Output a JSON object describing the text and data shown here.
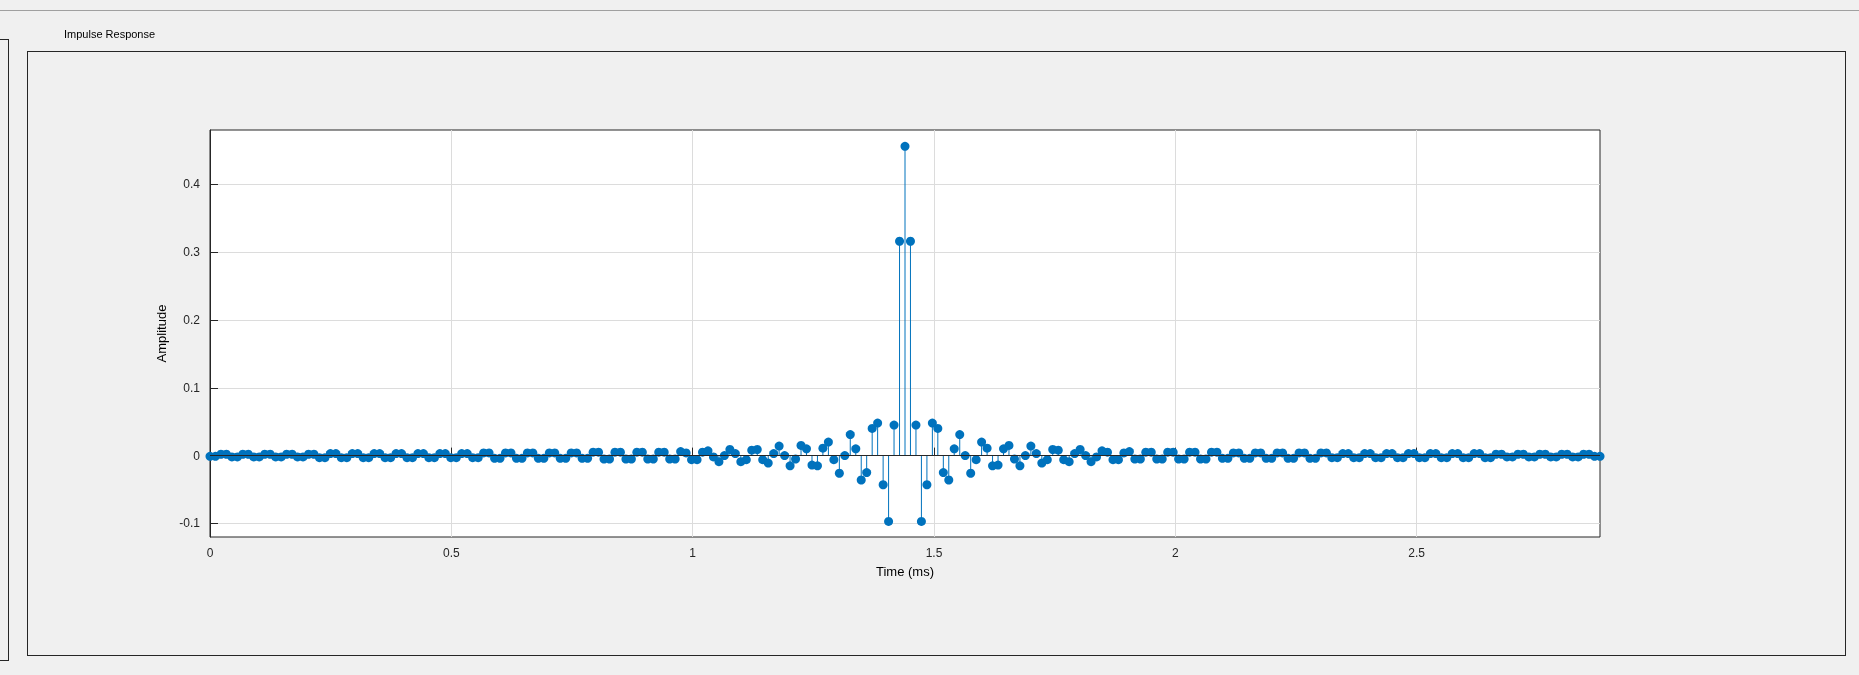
{
  "chart_data": {
    "type": "lollipop",
    "title": "Impulse Response",
    "xlabel": "Time (ms)",
    "ylabel": "Amplitude",
    "xlim": [
      0,
      2.8798
    ],
    "xticks": [
      0,
      0.5,
      1,
      1.5,
      2,
      2.5
    ],
    "ylim": [
      -0.12,
      0.48
    ],
    "yticks": [
      -0.1,
      0,
      0.1,
      0.2,
      0.3,
      0.4
    ],
    "grid": true,
    "marker": "circle",
    "ref_lines": [
      {
        "axis": "y",
        "value": 0,
        "color": "#262626"
      }
    ],
    "x": [
      0,
      0.0113,
      0.0227,
      0.034,
      0.0454,
      0.0567,
      0.068,
      0.0794,
      0.0907,
      0.102,
      0.1134,
      0.1247,
      0.1361,
      0.1474,
      0.1587,
      0.1701,
      0.1814,
      0.1927,
      0.2041,
      0.2154,
      0.2268,
      0.2381,
      0.2494,
      0.2608,
      0.2721,
      0.2834,
      0.2948,
      0.3061,
      0.3175,
      0.3288,
      0.3401,
      0.3515,
      0.3628,
      0.3742,
      0.3855,
      0.3968,
      0.4082,
      0.4195,
      0.4308,
      0.4422,
      0.4535,
      0.4649,
      0.4762,
      0.4875,
      0.4989,
      0.5102,
      0.5215,
      0.5329,
      0.5442,
      0.5556,
      0.5669,
      0.5782,
      0.5896,
      0.6009,
      0.6122,
      0.6236,
      0.6349,
      0.6463,
      0.6576,
      0.6689,
      0.6803,
      0.6916,
      0.703,
      0.7143,
      0.7256,
      0.737,
      0.7483,
      0.7596,
      0.771,
      0.7823,
      0.7937,
      0.805,
      0.8163,
      0.8277,
      0.839,
      0.8503,
      0.8617,
      0.873,
      0.8844,
      0.8957,
      0.907,
      0.9184,
      0.9297,
      0.941,
      0.9524,
      0.9637,
      0.9751,
      0.9864,
      0.9977,
      1.0091,
      1.0204,
      1.0317,
      1.0431,
      1.0544,
      1.0658,
      1.0771,
      1.0884,
      1.0998,
      1.1111,
      1.1224,
      1.1338,
      1.1451,
      1.1565,
      1.1678,
      1.1791,
      1.1905,
      1.2018,
      1.2132,
      1.2245,
      1.2358,
      1.2472,
      1.2585,
      1.2698,
      1.2812,
      1.2925,
      1.3039,
      1.3152,
      1.3265,
      1.3379,
      1.3492,
      1.3605,
      1.3719,
      1.3832,
      1.3946,
      1.4059,
      1.4172,
      1.4286,
      1.4399,
      1.4512,
      1.4626,
      1.4739,
      1.4853,
      1.4966,
      1.5079,
      1.5193,
      1.5306,
      1.5419,
      1.5533,
      1.5646,
      1.576,
      1.5873,
      1.5986,
      1.61,
      1.6213,
      1.6327,
      1.644,
      1.6553,
      1.6667,
      1.678,
      1.6893,
      1.7007,
      1.712,
      1.7234,
      1.7347,
      1.746,
      1.7574,
      1.7687,
      1.78,
      1.7914,
      1.8027,
      1.8141,
      1.8254,
      1.8367,
      1.8481,
      1.8594,
      1.8708,
      1.8821,
      1.8934,
      1.9048,
      1.9161,
      1.9275,
      1.9388,
      1.9501,
      1.9615,
      1.9728,
      1.9842,
      1.9955,
      2.0068,
      2.0182,
      2.0295,
      2.0408,
      2.0522,
      2.0635,
      2.0749,
      2.0862,
      2.0975,
      2.1089,
      2.1202,
      2.1315,
      2.1429,
      2.1542,
      2.1656,
      2.1769,
      2.1882,
      2.1996,
      2.2109,
      2.2222,
      2.2336,
      2.2449,
      2.2563,
      2.2676,
      2.2789,
      2.2903,
      2.3016,
      2.313,
      2.3243,
      2.3356,
      2.347,
      2.3583,
      2.3696,
      2.381,
      2.3923,
      2.4037,
      2.415,
      2.4263,
      2.4377,
      2.449,
      2.4603,
      2.4717,
      2.483,
      2.4944,
      2.5057,
      2.517,
      2.5284,
      2.5397,
      2.551,
      2.5624,
      2.5737,
      2.5851,
      2.5964,
      2.6077,
      2.6191,
      2.6304,
      2.6418,
      2.6531,
      2.6644,
      2.6758,
      2.6871,
      2.6984,
      2.7098,
      2.7211,
      2.7325,
      2.7438,
      2.7551,
      2.7665,
      2.7778,
      2.7891,
      2.8005,
      2.8118,
      2.8232,
      2.8345,
      2.8458,
      2.8572,
      2.8685,
      2.8798
    ],
    "series": [
      {
        "color": "#0072bd",
        "values": [
          -0.001,
          -0.001,
          0.002,
          0.002,
          -0.002,
          -0.002,
          0.002,
          0.002,
          -0.002,
          -0.002,
          0.002,
          0.002,
          -0.002,
          -0.002,
          0.002,
          0.002,
          -0.002,
          -0.002,
          0.002,
          0.002,
          -0.003,
          -0.003,
          0.003,
          0.003,
          -0.003,
          -0.003,
          0.003,
          0.003,
          -0.003,
          -0.003,
          0.003,
          0.003,
          -0.003,
          -0.003,
          0.003,
          0.003,
          -0.003,
          -0.003,
          0.003,
          0.003,
          -0.003,
          -0.003,
          0.003,
          0.003,
          -0.003,
          -0.003,
          0.003,
          0.003,
          -0.003,
          -0.003,
          0.004,
          0.004,
          -0.004,
          -0.004,
          0.004,
          0.004,
          -0.004,
          -0.004,
          0.004,
          0.004,
          -0.004,
          -0.004,
          0.004,
          0.004,
          -0.004,
          -0.004,
          0.004,
          0.004,
          -0.004,
          -0.004,
          0.005,
          0.005,
          -0.005,
          -0.005,
          0.005,
          0.005,
          -0.005,
          -0.005,
          0.005,
          0.005,
          -0.005,
          -0.005,
          0.005,
          0.005,
          -0.005,
          -0.005,
          0.006,
          0.004,
          -0.006,
          -0.006,
          0.005,
          0.007,
          -0.002,
          -0.009,
          0,
          0.009,
          0.003,
          -0.009,
          -0.006,
          0.008,
          0.009,
          -0.006,
          -0.011,
          0.003,
          0.014,
          0,
          -0.015,
          -0.005,
          0.015,
          0.01,
          -0.014,
          -0.015,
          0.011,
          0.02,
          -0.006,
          -0.026,
          0,
          0.031,
          0.01,
          -0.036,
          -0.025,
          0.04,
          0.048,
          -0.043,
          -0.097,
          0.045,
          0.316,
          0.456,
          0.316,
          0.045,
          -0.097,
          -0.043,
          0.048,
          0.04,
          -0.025,
          -0.036,
          0.01,
          0.031,
          0,
          -0.026,
          -0.006,
          0.02,
          0.011,
          -0.015,
          -0.014,
          0.01,
          0.015,
          -0.005,
          -0.015,
          0,
          0.014,
          0.003,
          -0.011,
          -0.006,
          0.009,
          0.008,
          -0.006,
          -0.009,
          0.003,
          0.009,
          0,
          -0.009,
          -0.002,
          0.007,
          0.005,
          -0.006,
          -0.006,
          0.004,
          0.006,
          -0.005,
          -0.005,
          0.005,
          0.005,
          -0.005,
          -0.005,
          0.005,
          0.005,
          -0.005,
          -0.005,
          0.005,
          0.005,
          -0.005,
          -0.005,
          0.005,
          0.005,
          -0.004,
          -0.004,
          0.004,
          0.004,
          -0.004,
          -0.004,
          0.004,
          0.004,
          -0.004,
          -0.004,
          0.004,
          0.004,
          -0.004,
          -0.004,
          0.004,
          0.004,
          -0.004,
          -0.004,
          0.004,
          0.004,
          -0.003,
          -0.003,
          0.003,
          0.003,
          -0.003,
          -0.003,
          0.003,
          0.003,
          -0.003,
          -0.003,
          0.003,
          0.003,
          -0.003,
          -0.003,
          0.003,
          0.003,
          -0.003,
          -0.003,
          0.003,
          0.003,
          -0.003,
          -0.003,
          0.003,
          0.003,
          -0.003,
          -0.003,
          0.003,
          0.003,
          -0.003,
          -0.003,
          0.002,
          0.002,
          -0.002,
          -0.002,
          0.002,
          0.002,
          -0.002,
          -0.002,
          0.002,
          0.002,
          -0.002,
          -0.002,
          0.002,
          0.002,
          -0.002,
          -0.002,
          0.002,
          0.002,
          -0.001,
          -0.001
        ]
      }
    ]
  }
}
